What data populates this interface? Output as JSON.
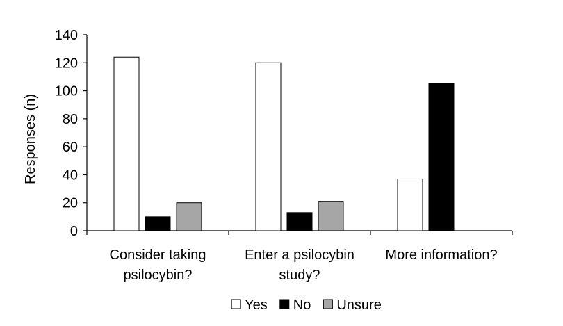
{
  "chart_data": {
    "type": "bar",
    "title": "",
    "xlabel": "",
    "ylabel": "Responses (n)",
    "ylim": [
      0,
      140
    ],
    "yticks": [
      0,
      20,
      40,
      60,
      80,
      100,
      120,
      140
    ],
    "categories": [
      [
        "Consider taking",
        "psilocybin?"
      ],
      [
        "Enter a psilocybin",
        "study?"
      ],
      [
        "More information?"
      ]
    ],
    "series": [
      {
        "name": "Yes",
        "color": "#ffffff",
        "values": [
          124,
          120,
          37
        ]
      },
      {
        "name": "No",
        "color": "#000000",
        "values": [
          10,
          13,
          105
        ]
      },
      {
        "name": "Unsure",
        "color": "#a6a6a6",
        "values": [
          20,
          21,
          0
        ]
      }
    ],
    "grid": false,
    "legend": "bottom-center"
  }
}
